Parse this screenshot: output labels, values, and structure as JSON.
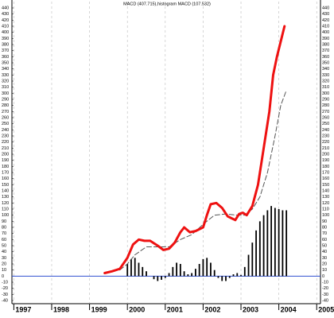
{
  "chart_data": {
    "type": "line",
    "title": "MACD (407.715),histogram MACD (107.532)",
    "xlim": [
      1996.95,
      2005.1
    ],
    "xticks": [
      1997,
      1998,
      1999,
      2000,
      2001,
      2002,
      2003,
      2004,
      2005
    ],
    "ylim": [
      -40,
      440
    ],
    "yticks": [
      -40,
      -30,
      -20,
      -10,
      0,
      10,
      20,
      30,
      40,
      50,
      60,
      70,
      80,
      90,
      100,
      110,
      120,
      130,
      140,
      150,
      160,
      170,
      180,
      190,
      200,
      210,
      220,
      230,
      240,
      250,
      260,
      270,
      280,
      290,
      300,
      310,
      320,
      330,
      340,
      350,
      360,
      370,
      380,
      390,
      400,
      410,
      420,
      430,
      440
    ],
    "grid": true,
    "zero_line_color": "#3050d0",
    "series": [
      {
        "type": "bar",
        "color": "#000000",
        "x": [
          2000.0,
          2000.1,
          2000.2,
          2000.3,
          2000.4,
          2000.5,
          2000.6,
          2000.7,
          2000.8,
          2000.9,
          2001.0,
          2001.1,
          2001.2,
          2001.3,
          2001.4,
          2001.5,
          2001.6,
          2001.7,
          2001.8,
          2001.9,
          2002.0,
          2002.1,
          2002.2,
          2002.3,
          2002.4,
          2002.5,
          2002.6,
          2002.7,
          2002.8,
          2002.9,
          2003.0,
          2003.1,
          2003.2,
          2003.3,
          2003.4,
          2003.5,
          2003.6,
          2003.7,
          2003.8,
          2003.9,
          2004.0,
          2004.1,
          2004.2
        ],
        "values": [
          20,
          28,
          30,
          22,
          15,
          8,
          0,
          -5,
          -8,
          -6,
          -3,
          5,
          15,
          22,
          20,
          8,
          3,
          5,
          12,
          20,
          28,
          30,
          22,
          10,
          -3,
          -8,
          -8,
          -3,
          3,
          5,
          2,
          15,
          35,
          55,
          75,
          90,
          100,
          108,
          115,
          112,
          110,
          108,
          108
        ]
      },
      {
        "type": "line",
        "color": "#555555",
        "dash": true,
        "width": 1,
        "x": [
          1999.8,
          2000.0,
          2000.2,
          2000.5,
          2000.8,
          2001.1,
          2001.4,
          2001.7,
          2002.0,
          2002.3,
          2002.6,
          2002.9,
          2003.1,
          2003.3,
          2003.5,
          2003.7,
          2003.9,
          2004.05,
          2004.2
        ],
        "values": [
          10,
          20,
          35,
          48,
          48,
          48,
          60,
          68,
          85,
          100,
          102,
          100,
          100,
          110,
          130,
          170,
          230,
          280,
          305
        ]
      },
      {
        "type": "line",
        "color": "#ee1111",
        "dash": false,
        "width": 3,
        "x": [
          1999.4,
          1999.6,
          1999.8,
          2000.0,
          2000.15,
          2000.3,
          2000.45,
          2000.6,
          2000.8,
          2000.95,
          2001.1,
          2001.25,
          2001.4,
          2001.5,
          2001.65,
          2001.8,
          2002.0,
          2002.1,
          2002.2,
          2002.35,
          2002.5,
          2002.65,
          2002.75,
          2002.85,
          2002.95,
          2003.05,
          2003.15,
          2003.3,
          2003.45,
          2003.6,
          2003.75,
          2003.85,
          2003.95,
          2004.15
        ],
        "values": [
          5,
          8,
          12,
          30,
          52,
          60,
          58,
          58,
          50,
          43,
          45,
          55,
          72,
          80,
          72,
          74,
          80,
          100,
          118,
          120,
          112,
          98,
          95,
          92,
          102,
          104,
          100,
          115,
          150,
          210,
          270,
          330,
          360,
          410
        ]
      }
    ]
  }
}
